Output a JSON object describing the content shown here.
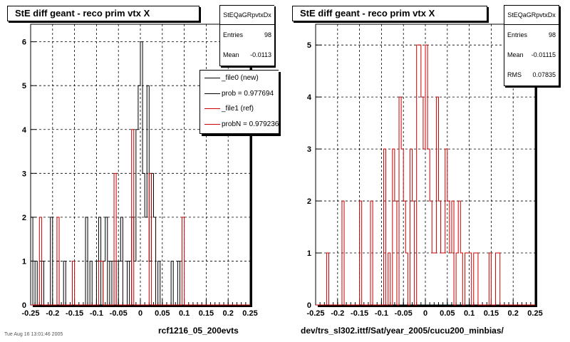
{
  "chart_data": [
    {
      "type": "histogram",
      "title": "StE  diff geant - reco prim vtx X",
      "xlim": [
        -0.25,
        0.25
      ],
      "ylim": [
        0,
        6.4
      ],
      "x_ticks": [
        "-0.25",
        "-0.2",
        "-0.15",
        "-0.1",
        "-0.05",
        "0",
        "0.05",
        "0.1",
        "0.15",
        "0.2",
        "0.25"
      ],
      "y_ticks": [
        "0",
        "1",
        "2",
        "3",
        "4",
        "5",
        "6"
      ],
      "grid": true,
      "stats": {
        "name": "StEQaGRpvtxDx",
        "entries_label": "Entries",
        "entries": "98",
        "mean_label": "Mean",
        "mean": "-0.0113"
      },
      "legend": {
        "position": "top-right",
        "entries": [
          {
            "label": "_file0 (new)",
            "color": "#000000"
          },
          {
            "label": "prob = 0.977694",
            "color": "#000000"
          },
          {
            "label": "_file1 (ref)",
            "color": "#cc0000"
          },
          {
            "label": "probN = 0.979236",
            "color": "#cc0000"
          }
        ]
      },
      "caption": "rcf1216_05_200evts",
      "bin_start": -0.25,
      "bin_width": 0.005,
      "series": [
        {
          "name": "_file0 (new)",
          "color": "#000000",
          "values": [
            2,
            0,
            1,
            0,
            0,
            1,
            0,
            0,
            0,
            2,
            0,
            0,
            1,
            0,
            0,
            1,
            0,
            0,
            0,
            0,
            0,
            0,
            0,
            0,
            0,
            2,
            0,
            1,
            0,
            0,
            1,
            2,
            0,
            1,
            2,
            0,
            1,
            0,
            1,
            0,
            1,
            2,
            0,
            0,
            1,
            0,
            2,
            1,
            4,
            5,
            6,
            3,
            2,
            5,
            1,
            3,
            2,
            0,
            1,
            0,
            0,
            0,
            0,
            0,
            1,
            0,
            0,
            1,
            0,
            0,
            0,
            0,
            0,
            0,
            0,
            0,
            0,
            0,
            0,
            0,
            0,
            0,
            0,
            0,
            0,
            0,
            0,
            0,
            0,
            0,
            0,
            0,
            0,
            0,
            0,
            0,
            0,
            0,
            0,
            0
          ]
        },
        {
          "name": "_file1 (ref)",
          "color": "#cc0000",
          "values": [
            0,
            0,
            0,
            0,
            2,
            0,
            0,
            0,
            0,
            0,
            0,
            0,
            2,
            0,
            0,
            0,
            0,
            0,
            0,
            1,
            0,
            0,
            0,
            0,
            0,
            0,
            0,
            0,
            0,
            0,
            0,
            1,
            1,
            0,
            0,
            0,
            0,
            0,
            3,
            0,
            0,
            0,
            0,
            0,
            0,
            0,
            4,
            0,
            0,
            0,
            0,
            0,
            0,
            0,
            3,
            0,
            0,
            0,
            0,
            0,
            0,
            0,
            0,
            0,
            0,
            0,
            0,
            0,
            0,
            2,
            0,
            0,
            0,
            0,
            0,
            0,
            0,
            0,
            0,
            0,
            0,
            0,
            0,
            0,
            0,
            0,
            0,
            0,
            0,
            0,
            0,
            0,
            0,
            0,
            0,
            0,
            0,
            0,
            0,
            0
          ]
        }
      ]
    },
    {
      "type": "histogram",
      "title": "StE  diff geant - reco prim vtx X",
      "xlim": [
        -0.25,
        0.25
      ],
      "ylim": [
        0,
        5.4
      ],
      "x_ticks": [
        "-0.25",
        "-0.2",
        "-0.15",
        "-0.1",
        "-0.05",
        "0",
        "0.05",
        "0.1",
        "0.15",
        "0.2",
        "0.25"
      ],
      "y_ticks": [
        "0",
        "1",
        "2",
        "3",
        "4",
        "5"
      ],
      "grid": true,
      "stats": {
        "name": "StEQaGRpvtxDx",
        "entries_label": "Entries",
        "entries": "98",
        "mean_label": "Mean",
        "mean": "-0.01115",
        "rms_label": "RMS",
        "rms": "0.07835"
      },
      "caption": "dev/trs_sl302.ittf/Sat/year_2005/cucu200_minbias/",
      "bin_start": -0.25,
      "bin_width": 0.005,
      "series": [
        {
          "name": "",
          "color": "#cc0000",
          "values": [
            0,
            0,
            0,
            0,
            0,
            1,
            0,
            0,
            0,
            0,
            0,
            0,
            2,
            0,
            0,
            0,
            0,
            0,
            0,
            0,
            2,
            0,
            0,
            0,
            0,
            2,
            0,
            0,
            0,
            0,
            0,
            3,
            0,
            1,
            0,
            3,
            2,
            0,
            4,
            3,
            2,
            1,
            0,
            3,
            2,
            0,
            5,
            5,
            4,
            3,
            5,
            3,
            2,
            1,
            1,
            4,
            2,
            1,
            1,
            3,
            2,
            1,
            2,
            0,
            1,
            2,
            1,
            0,
            1,
            1,
            1,
            0,
            1,
            1,
            0,
            0,
            0,
            0,
            0,
            1,
            0,
            0,
            1,
            1,
            0,
            0,
            0,
            0,
            0,
            0,
            0,
            0,
            0,
            0,
            0,
            0,
            0,
            0,
            0,
            0
          ]
        }
      ]
    }
  ],
  "footer": {
    "date_stamp": "Tue Aug 16 13:01:46 2005"
  }
}
